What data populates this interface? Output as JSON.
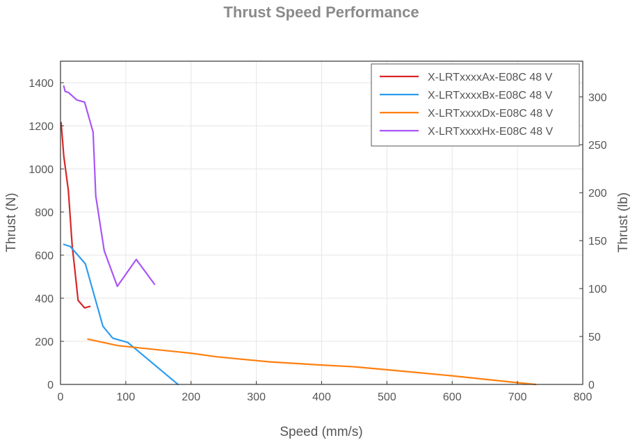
{
  "chart_data": {
    "type": "line",
    "title": "Thrust Speed Performance",
    "xlabel": "Speed (mm/s)",
    "ylabel": "Thrust (N)",
    "ylabel_right": "Thrust (lb)",
    "xlim": [
      0,
      800
    ],
    "ylim": [
      0,
      1500
    ],
    "ylim_right": [
      0,
      337.2
    ],
    "x_ticks": [
      0,
      100,
      200,
      300,
      400,
      500,
      600,
      700,
      800
    ],
    "y_ticks": [
      0,
      200,
      400,
      600,
      800,
      1000,
      1200,
      1400
    ],
    "y_ticks_right": [
      0,
      50,
      100,
      150,
      200,
      250,
      300
    ],
    "grid": true,
    "legend_position": "top-right",
    "series": [
      {
        "name": "X-LRTxxxxAx-E08C 48 V",
        "color": "#d62728",
        "x": [
          1,
          5,
          12,
          18,
          22,
          27,
          37,
          45
        ],
        "y": [
          1215,
          1060,
          900,
          640,
          530,
          390,
          355,
          362
        ]
      },
      {
        "name": "X-LRTxxxxBx-E08C 48 V",
        "color": "#2e9cf0",
        "x": [
          5,
          15,
          38,
          65,
          80,
          103,
          180
        ],
        "y": [
          650,
          640,
          560,
          270,
          215,
          195,
          0
        ]
      },
      {
        "name": "X-LRTxxxxDx-E08C 48 V",
        "color": "#ff7f0e",
        "x": [
          42,
          88,
          200,
          240,
          320,
          400,
          450,
          500,
          600,
          700,
          728
        ],
        "y": [
          210,
          180,
          145,
          128,
          105,
          90,
          82,
          68,
          40,
          8,
          0
        ]
      },
      {
        "name": "X-LRTxxxxHx-E08C 48 V",
        "color": "#a855f7",
        "x": [
          5,
          7,
          12,
          25,
          37,
          50,
          54,
          67,
          87,
          116,
          144
        ],
        "y": [
          1385,
          1360,
          1355,
          1320,
          1310,
          1170,
          875,
          620,
          455,
          580,
          465
        ]
      }
    ]
  }
}
